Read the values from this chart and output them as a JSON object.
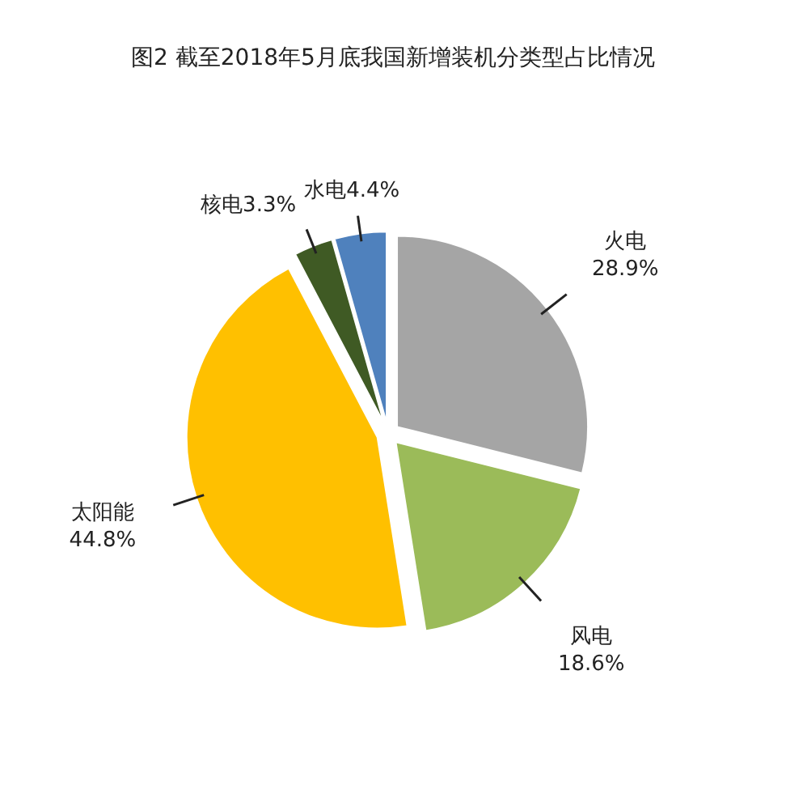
{
  "chart_data": {
    "type": "pie",
    "title": "图2 截至2018年5月底我国新增装机分类型占比情况",
    "categories": [
      "火电",
      "风电",
      "太阳能",
      "核电",
      "水电"
    ],
    "values": [
      28.9,
      18.6,
      44.8,
      3.3,
      4.4
    ],
    "value_labels": [
      "28.9%",
      "18.6%",
      "44.8%",
      "3.3%",
      "4.4%"
    ],
    "colors": [
      "#a5a5a5",
      "#9bbb59",
      "#ffc000",
      "#3f5a24",
      "#4f81bd"
    ]
  }
}
